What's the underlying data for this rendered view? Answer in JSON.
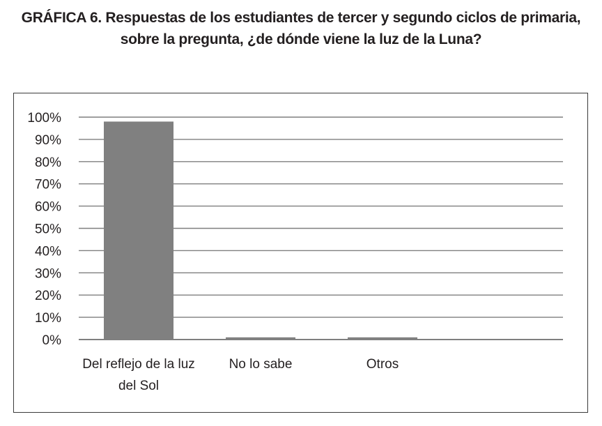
{
  "title": {
    "line1_prefix": "GRÁFICA 6.",
    "line1_rest": " Respuestas de los estudiantes de tercer y segundo ciclos de primaria,",
    "line2": "sobre la pregunta, ¿de dónde viene la luz de la Luna?"
  },
  "chart_data": {
    "type": "bar",
    "categories": [
      "Del reflejo de la luz del Sol",
      "No lo sabe",
      "Otros"
    ],
    "category_label_lines": [
      [
        "Del reflejo de la luz",
        "del Sol"
      ],
      [
        "No lo sabe"
      ],
      [
        "Otros"
      ]
    ],
    "values": [
      98,
      1,
      1
    ],
    "ylim": [
      0,
      100
    ],
    "yticks": [
      "0%",
      "10%",
      "20%",
      "30%",
      "40%",
      "50%",
      "60%",
      "70%",
      "80%",
      "90%",
      "100%"
    ],
    "grid": true,
    "legend": "none",
    "bar_color": "#808080",
    "grid_color": "#7f7f7f"
  }
}
